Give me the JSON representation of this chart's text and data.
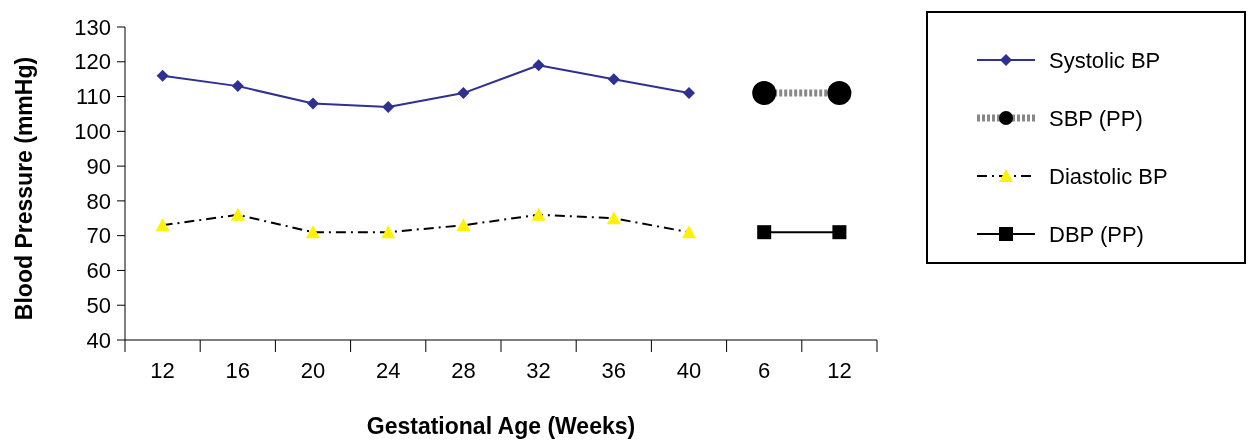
{
  "chart_data": {
    "type": "line",
    "xlabel": "Gestational Age (Weeks)",
    "ylabel": "Blood Pressure (mmHg)",
    "categories": [
      "12",
      "16",
      "20",
      "24",
      "28",
      "32",
      "36",
      "40",
      "6",
      "12"
    ],
    "ylim": [
      40,
      130
    ],
    "yticks": [
      40,
      50,
      60,
      70,
      80,
      90,
      100,
      110,
      120,
      130
    ],
    "grid": false,
    "legend": "right",
    "series": [
      {
        "name": "Systolic BP",
        "color": "#2e3192",
        "marker": "diamond",
        "line_style": "solid",
        "values": [
          116,
          113,
          108,
          107,
          111,
          119,
          115,
          111,
          null,
          null
        ]
      },
      {
        "name": "SBP (PP)",
        "color": "#000000",
        "marker": "circle",
        "line_style": "dotted",
        "values": [
          null,
          null,
          null,
          null,
          null,
          null,
          null,
          null,
          111,
          111
        ]
      },
      {
        "name": "Diastolic BP",
        "color": "#fff200",
        "marker": "triangle",
        "line_style": "dashed",
        "values": [
          73,
          76,
          71,
          71,
          73,
          76,
          75,
          71,
          null,
          null
        ]
      },
      {
        "name": "DBP (PP)",
        "color": "#000000",
        "marker": "square",
        "line_style": "solid",
        "values": [
          null,
          null,
          null,
          null,
          null,
          null,
          null,
          null,
          71,
          71
        ]
      }
    ]
  }
}
